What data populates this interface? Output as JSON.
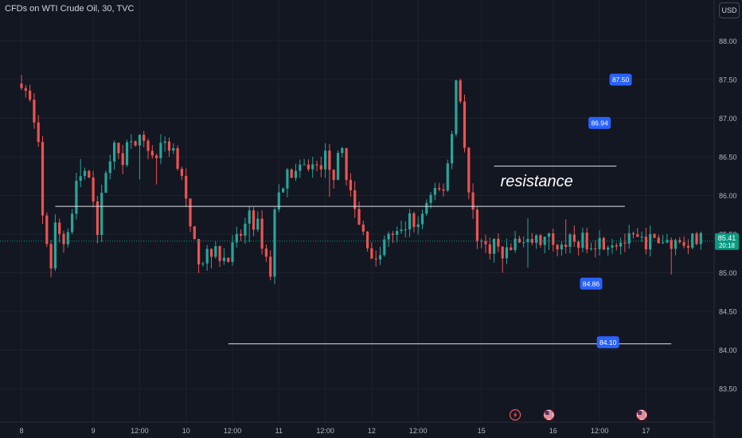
{
  "header": {
    "symbol_title": "CFDs on WTI Crude Oil, 30, TVC",
    "currency_button": "USD"
  },
  "colors": {
    "up": "#26a69a",
    "down": "#ef5350",
    "background": "#131722",
    "grid": "#1e222d",
    "label_blue": "#2962ff",
    "last_price": "#089981",
    "axis_text": "#b2b5be"
  },
  "chart_data": {
    "type": "candlestick",
    "ylim": [
      83.2,
      88.35
    ],
    "y_ticks": [
      "83.50",
      "84.00",
      "84.50",
      "85.00",
      "85.50",
      "86.00",
      "86.50",
      "87.00",
      "87.50",
      "88.00"
    ],
    "x_ticks": [
      {
        "label": "8",
        "bar": 0
      },
      {
        "label": "9",
        "bar": 17
      },
      {
        "label": "12:00",
        "bar": 28
      },
      {
        "label": "10",
        "bar": 39
      },
      {
        "label": "12:00",
        "bar": 50
      },
      {
        "label": "11",
        "bar": 61
      },
      {
        "label": "12:00",
        "bar": 72
      },
      {
        "label": "12",
        "bar": 83
      },
      {
        "label": "12:00",
        "bar": 94
      },
      {
        "label": "15",
        "bar": 109
      },
      {
        "label": "16",
        "bar": 126
      },
      {
        "label": "12:00",
        "bar": 137
      },
      {
        "label": "17",
        "bar": 148
      }
    ],
    "bar_count": 162,
    "waypoints": [
      [
        0,
        87.5
      ],
      [
        2,
        87.2
      ],
      [
        4,
        86.6
      ],
      [
        5,
        85.7
      ],
      [
        6,
        85.4
      ],
      [
        7,
        85.1
      ],
      [
        8,
        85.6
      ],
      [
        10,
        85.4
      ],
      [
        12,
        85.8
      ],
      [
        13,
        86.2
      ],
      [
        15,
        86.3
      ],
      [
        17,
        86.0
      ],
      [
        18,
        85.5
      ],
      [
        20,
        86.4
      ],
      [
        22,
        86.6
      ],
      [
        24,
        86.5
      ],
      [
        26,
        86.8
      ],
      [
        28,
        86.7
      ],
      [
        30,
        86.6
      ],
      [
        32,
        86.5
      ],
      [
        34,
        86.7
      ],
      [
        36,
        86.6
      ],
      [
        38,
        86.3
      ],
      [
        39,
        85.9
      ],
      [
        40,
        85.5
      ],
      [
        42,
        85.2
      ],
      [
        44,
        85.2
      ],
      [
        46,
        85.25
      ],
      [
        48,
        85.2
      ],
      [
        50,
        85.3
      ],
      [
        52,
        85.5
      ],
      [
        54,
        85.7
      ],
      [
        56,
        85.6
      ],
      [
        58,
        85.2
      ],
      [
        59,
        85.0
      ],
      [
        60,
        85.8
      ],
      [
        62,
        86.2
      ],
      [
        64,
        86.3
      ],
      [
        66,
        86.3
      ],
      [
        68,
        86.4
      ],
      [
        70,
        86.35
      ],
      [
        72,
        86.5
      ],
      [
        74,
        86.3
      ],
      [
        76,
        86.6
      ],
      [
        78,
        86.0
      ],
      [
        80,
        85.6
      ],
      [
        82,
        85.4
      ],
      [
        84,
        85.1
      ],
      [
        86,
        85.4
      ],
      [
        88,
        85.5
      ],
      [
        90,
        85.5
      ],
      [
        92,
        85.7
      ],
      [
        94,
        85.6
      ],
      [
        96,
        85.9
      ],
      [
        98,
        86.0
      ],
      [
        100,
        86.1
      ],
      [
        102,
        86.8
      ],
      [
        103,
        87.5
      ],
      [
        104,
        87.3
      ],
      [
        105,
        86.6
      ],
      [
        106,
        86.0
      ],
      [
        107,
        85.8
      ],
      [
        108,
        85.5
      ],
      [
        110,
        85.3
      ],
      [
        112,
        85.4
      ],
      [
        114,
        85.2
      ],
      [
        116,
        85.35
      ],
      [
        118,
        85.41
      ]
    ],
    "series": [
      {
        "name": "",
        "type": "hline",
        "y": 85.86,
        "x_start_bar": 8,
        "x_end_bar": 143
      },
      {
        "name": "",
        "type": "hline",
        "y": 86.38,
        "x_start_bar": 112,
        "x_end_bar": 141
      },
      {
        "name": "",
        "type": "hline",
        "y": 84.08,
        "x_start_bar": 49,
        "x_end_bar": 154
      }
    ],
    "price_labels": [
      {
        "text": "87.50",
        "y": 87.5,
        "bar": 142
      },
      {
        "text": "86.94",
        "y": 86.94,
        "bar": 137
      },
      {
        "text": "84.86",
        "y": 84.86,
        "bar": 135
      },
      {
        "text": "84.10",
        "y": 84.1,
        "bar": 139
      }
    ],
    "last_price": {
      "value": 85.41,
      "text": "85.41",
      "countdown": "20:18"
    },
    "annotations": [
      {
        "text": "resistance",
        "y": 86.15,
        "bar": 122
      }
    ],
    "event_markers": [
      {
        "icon": "lightning-icon",
        "bar": 117
      },
      {
        "icon": "us-flag-icon",
        "bar": 125
      },
      {
        "icon": "us-flag-icon",
        "bar": 147
      }
    ]
  }
}
